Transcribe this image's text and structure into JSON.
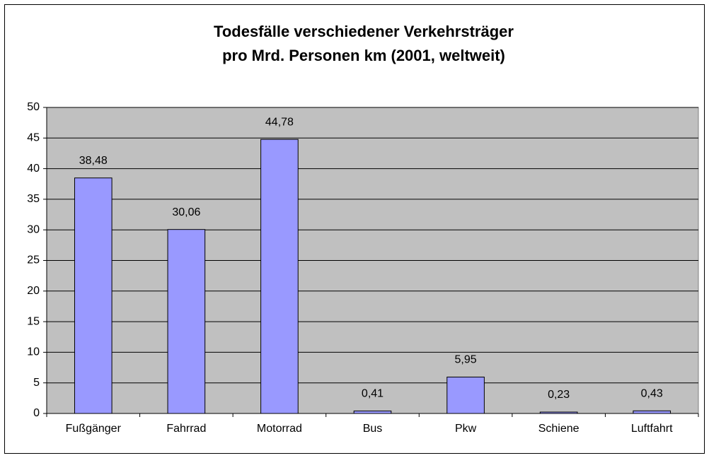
{
  "chart_data": {
    "type": "bar",
    "title": [
      "Todesfälle verschiedener Verkehrsträger",
      "pro Mrd. Personen km (2001, weltweit)"
    ],
    "categories": [
      "Fußgänger",
      "Fahrrad",
      "Motorrad",
      "Bus",
      "Pkw",
      "Schiene",
      "Luftfahrt"
    ],
    "values": [
      38.48,
      30.06,
      44.78,
      0.41,
      5.95,
      0.23,
      0.43
    ],
    "value_labels": [
      "38,48",
      "30,06",
      "44,78",
      "0,41",
      "5,95",
      "0,23",
      "0,43"
    ],
    "color": "#9999ff",
    "ylim": [
      0,
      50
    ],
    "yticks": [
      0,
      5,
      10,
      15,
      20,
      25,
      30,
      35,
      40,
      45,
      50
    ],
    "grid": true
  }
}
